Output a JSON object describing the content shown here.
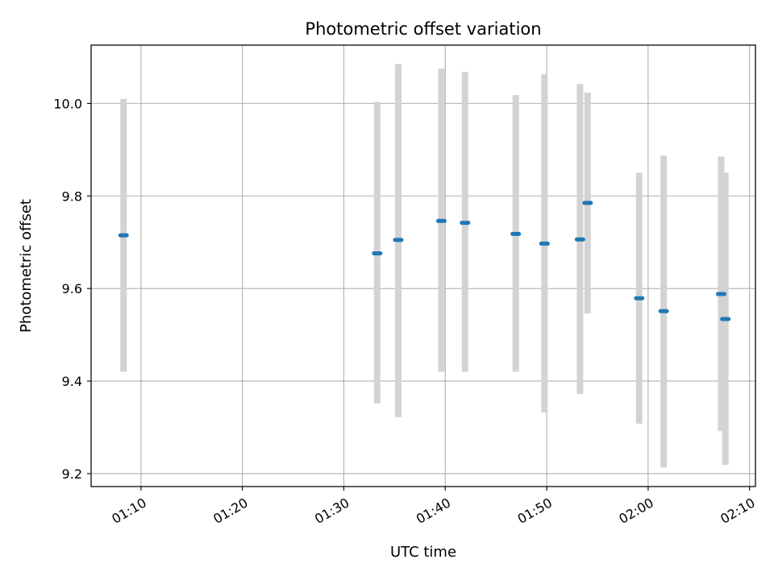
{
  "chart_data": {
    "type": "scatter",
    "title": "Photometric offset variation",
    "xlabel": "UTC time",
    "ylabel": "Photometric offset",
    "x_ticks": [
      "01:10",
      "01:20",
      "01:30",
      "01:40",
      "01:50",
      "02:00",
      "02:10"
    ],
    "y_ticks": [
      "9.2",
      "9.4",
      "9.6",
      "9.8",
      "10.0"
    ],
    "xlim": [
      "01:05:05",
      "02:10:35"
    ],
    "ylim": [
      9.172,
      10.126
    ],
    "grid": true,
    "series": [
      {
        "x": [
          "01:08:17",
          "01:33:17",
          "01:35:22",
          "01:39:37",
          "01:41:57",
          "01:46:57",
          "01:49:47",
          "01:53:17",
          "01:54:02",
          "01:59:07",
          "02:01:32",
          "02:07:12",
          "02:07:37"
        ],
        "y": [
          9.715,
          9.676,
          9.705,
          9.746,
          9.742,
          9.718,
          9.697,
          9.706,
          9.785,
          9.579,
          9.551,
          9.588,
          9.534
        ],
        "y_low": [
          9.42,
          9.352,
          9.322,
          9.42,
          9.42,
          9.42,
          9.332,
          9.372,
          9.546,
          9.308,
          9.213,
          9.292,
          9.219
        ],
        "y_high": [
          10.01,
          10.003,
          10.085,
          10.075,
          10.068,
          10.018,
          10.063,
          10.042,
          10.023,
          9.85,
          9.887,
          9.885,
          9.85
        ]
      }
    ]
  },
  "colors": {
    "point": "#1f77b4",
    "errorbar": "#d3d3d3",
    "grid": "#b0b0b0",
    "axes": "#000000"
  }
}
